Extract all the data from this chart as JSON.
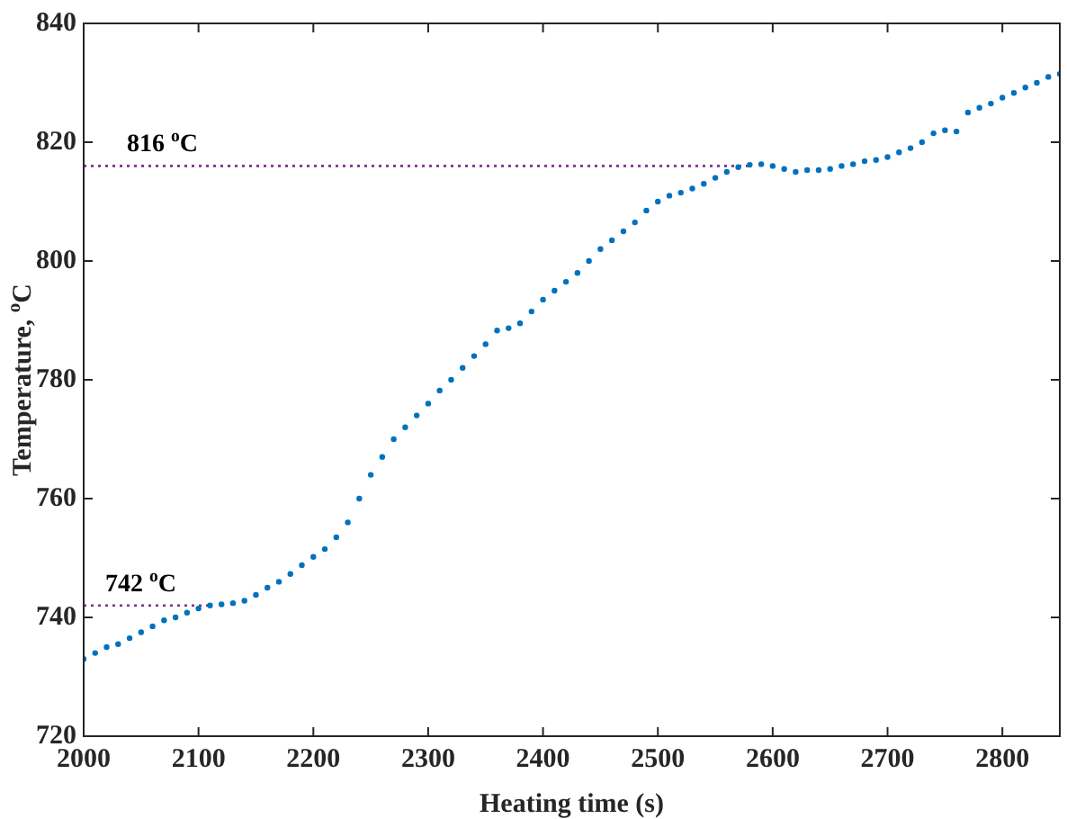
{
  "chart_data": {
    "type": "scatter",
    "xlabel": "Heating time (s)",
    "ylabel": "Temperature, $^{o}$C",
    "marker": "circle",
    "xlim": [
      2000,
      2850
    ],
    "ylim": [
      720,
      840
    ],
    "xticks": [
      2000,
      2100,
      2200,
      2300,
      2400,
      2500,
      2600,
      2700,
      2800
    ],
    "yticks": [
      720,
      740,
      760,
      780,
      800,
      820,
      840
    ],
    "series": [
      {
        "color": "#0072bd",
        "x": [
          2000,
          2010,
          2020,
          2030,
          2040,
          2050,
          2060,
          2070,
          2080,
          2090,
          2100,
          2110,
          2120,
          2130,
          2140,
          2150,
          2160,
          2170,
          2180,
          2190,
          2200,
          2210,
          2220,
          2230,
          2240,
          2250,
          2260,
          2270,
          2280,
          2290,
          2300,
          2310,
          2320,
          2330,
          2340,
          2350,
          2360,
          2370,
          2380,
          2390,
          2400,
          2410,
          2420,
          2430,
          2440,
          2450,
          2460,
          2470,
          2480,
          2490,
          2500,
          2510,
          2520,
          2530,
          2540,
          2550,
          2560,
          2570,
          2580,
          2590,
          2600,
          2610,
          2620,
          2630,
          2640,
          2650,
          2660,
          2670,
          2680,
          2690,
          2700,
          2710,
          2720,
          2730,
          2740,
          2750,
          2760,
          2770,
          2780,
          2790,
          2800,
          2810,
          2820,
          2830,
          2840,
          2850
        ],
        "values": [
          733,
          734,
          735,
          735.5,
          736.5,
          737.5,
          738.5,
          739.5,
          740,
          740.8,
          741.5,
          742,
          742.2,
          742.4,
          742.8,
          743.8,
          745,
          746,
          747.3,
          748.8,
          750.2,
          751.5,
          753.5,
          756,
          760,
          764,
          767,
          770,
          772,
          774,
          776,
          778.2,
          780,
          782,
          784,
          786,
          788.3,
          788.7,
          789.5,
          791.5,
          793.5,
          795,
          796.5,
          798,
          800,
          802,
          803.5,
          805,
          806.5,
          808.5,
          810,
          811,
          811.5,
          812.2,
          813,
          814,
          815,
          815.8,
          816.2,
          816.3,
          816,
          815.5,
          815,
          815.3,
          815.3,
          815.5,
          816,
          816.3,
          816.8,
          817,
          817.5,
          818.3,
          819,
          820,
          821.5,
          822,
          821.8,
          825,
          825.8,
          826.5,
          827.5,
          828.3,
          829.2,
          830,
          831,
          831.5
        ]
      }
    ],
    "ref_lines": [
      {
        "axis": "y",
        "value": 816,
        "label": "816 $^{o}$C",
        "color": "#7e2f8e",
        "line_style": "dotted"
      },
      {
        "axis": "y",
        "value": 742,
        "label": "742 $^{o}$C",
        "color": "#7e2f8e",
        "line_style": "dotted"
      }
    ]
  }
}
